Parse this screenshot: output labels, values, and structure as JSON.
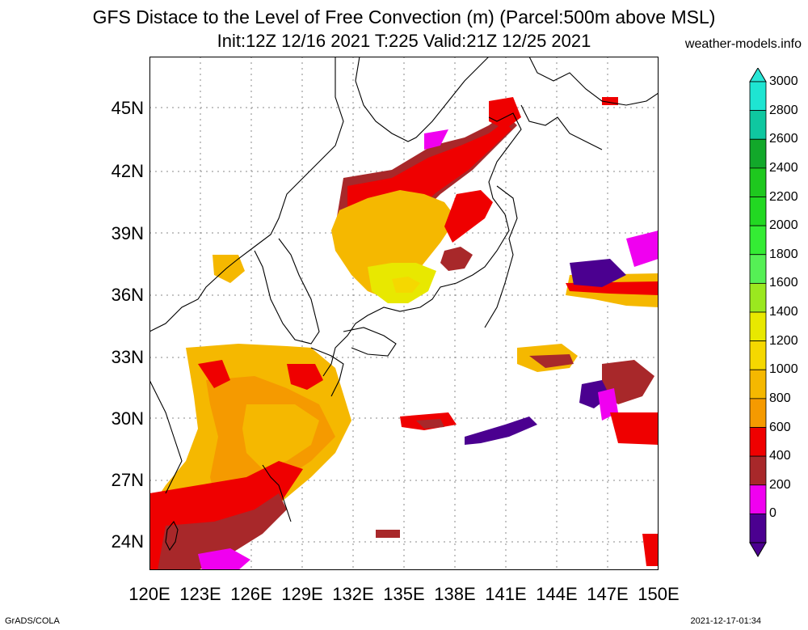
{
  "title": {
    "line1": "GFS Distace to the Level of Free Convection (m) (Parcel:500m above MSL)",
    "line2": "Init:12Z 12/16 2021 T:225 Valid:21Z 12/25 2021",
    "site": "weather-models.info"
  },
  "axes": {
    "lat_labels": [
      "45N",
      "42N",
      "39N",
      "36N",
      "33N",
      "30N",
      "27N",
      "24N"
    ],
    "lon_labels": [
      "120E",
      "123E",
      "126E",
      "129E",
      "132E",
      "135E",
      "138E",
      "141E",
      "144E",
      "147E",
      "150E"
    ]
  },
  "colorbar": {
    "labels": [
      "3000",
      "2800",
      "2600",
      "2400",
      "2200",
      "2000",
      "1800",
      "1600",
      "1400",
      "1200",
      "1000",
      "800",
      "600",
      "400",
      "200",
      "0"
    ],
    "colors": [
      "#1ee5d2",
      "#0fc7a0",
      "#12a82a",
      "#1ec81e",
      "#22d822",
      "#34ec34",
      "#55f055",
      "#9be81f",
      "#e8e800",
      "#f5d800",
      "#f5b800",
      "#f59a00",
      "#ef0000",
      "#a8282a",
      "#f000f0",
      "#4b0090"
    ],
    "top_arrow_color": "#28e6d6",
    "bottom_arrow_color": "#4b0090"
  },
  "footer": {
    "left": "GrADS/COLA",
    "right": "2021-12-17-01:34"
  }
}
